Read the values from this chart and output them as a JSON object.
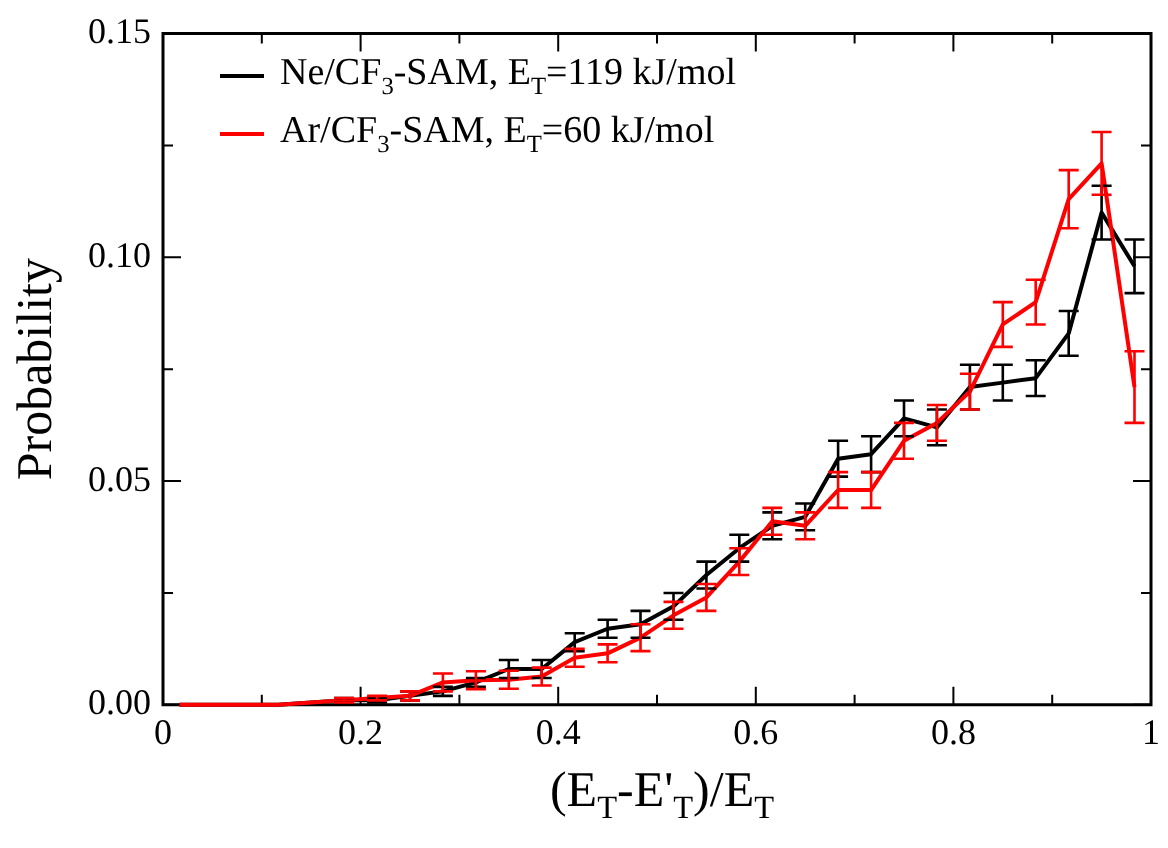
{
  "chart_data": {
    "type": "line",
    "xlabel": "(E$_{T}$-E'$_{T}$)/E$_{T}$",
    "ylabel": "Probability",
    "x": [
      0.0167,
      0.05,
      0.0833,
      0.1167,
      0.15,
      0.1833,
      0.2167,
      0.25,
      0.2833,
      0.3167,
      0.35,
      0.3833,
      0.4167,
      0.45,
      0.4833,
      0.5167,
      0.55,
      0.5833,
      0.6167,
      0.65,
      0.6833,
      0.7167,
      0.75,
      0.7833,
      0.8167,
      0.85,
      0.8833,
      0.9167,
      0.95,
      0.9833
    ],
    "series": [
      {
        "name": "Ne/CF$_{3}$-SAM, E$_{T}$=119 kJ/mol",
        "color": "#000000",
        "values": [
          0,
          0,
          0,
          0,
          0.0005,
          0.001,
          0.001,
          0.002,
          0.003,
          0.005,
          0.008,
          0.008,
          0.014,
          0.017,
          0.018,
          0.022,
          0.029,
          0.035,
          0.04,
          0.042,
          0.055,
          0.056,
          0.064,
          0.062,
          0.071,
          0.072,
          0.073,
          0.083,
          0.11,
          0.098
        ],
        "errors": [
          null,
          null,
          null,
          null,
          null,
          0.0005,
          0.0005,
          0.001,
          0.001,
          0.001,
          0.002,
          0.002,
          0.002,
          0.002,
          0.003,
          0.003,
          0.003,
          0.003,
          0.003,
          0.003,
          0.004,
          0.004,
          0.004,
          0.004,
          0.005,
          0.004,
          0.004,
          0.005,
          0.006,
          0.006
        ]
      },
      {
        "name": "Ar/CF$_{3}$-SAM, E$_{T}$=60 kJ/mol",
        "color": "#ff0000",
        "values": [
          0,
          0,
          0,
          0,
          0.0005,
          0.001,
          0.0015,
          0.002,
          0.005,
          0.0055,
          0.0056,
          0.0063,
          0.0105,
          0.0115,
          0.015,
          0.02,
          0.024,
          0.032,
          0.041,
          0.04,
          0.048,
          0.048,
          0.059,
          0.063,
          0.07,
          0.085,
          0.09,
          0.113,
          0.121,
          0.071
        ],
        "errors": [
          null,
          null,
          null,
          null,
          null,
          0.0005,
          0.0005,
          0.001,
          0.002,
          0.002,
          0.002,
          0.002,
          0.002,
          0.002,
          0.003,
          0.003,
          0.003,
          0.003,
          0.003,
          0.003,
          0.004,
          0.004,
          0.004,
          0.004,
          0.004,
          0.005,
          0.005,
          0.0065,
          0.007,
          0.008
        ]
      }
    ],
    "xlim": [
      0,
      1
    ],
    "xticks": [
      0,
      {
        "value": 0.1,
        "label": null
      },
      0.2,
      {
        "value": 0.3,
        "label": null
      },
      0.4,
      {
        "value": 0.5,
        "label": null
      },
      0.6,
      {
        "value": 0.7,
        "label": null
      },
      0.8,
      {
        "value": 0.9,
        "label": null
      },
      1
    ],
    "ylim": [
      0,
      0.15
    ],
    "yticks": [
      {
        "value": 0,
        "label": "0.00"
      },
      {
        "value": 0.025,
        "label": null
      },
      {
        "value": 0.05,
        "label": "0.05"
      },
      {
        "value": 0.075,
        "label": null
      },
      {
        "value": 0.1,
        "label": "0.10"
      },
      {
        "value": 0.125,
        "label": null
      },
      {
        "value": 0.15,
        "label": "0.15"
      }
    ],
    "legend": "top left",
    "grid": false,
    "marker": "none",
    "line_style": "solid"
  }
}
